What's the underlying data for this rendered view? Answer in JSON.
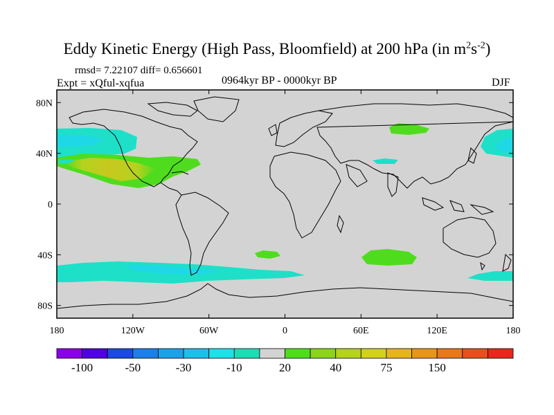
{
  "header": {
    "title_prefix": "Eddy Kinetic Energy (High Pass, Bloomfield) at 200 hPa (in m",
    "title_sup1": "2",
    "title_mid": "s",
    "title_sup2": "-2",
    "title_suffix": ")",
    "stats": "rmsd= 7.22107 diff= 0.656601",
    "experiment": "Expt = xQful-xqfua",
    "period": "0964kyr BP - 0000kyr BP",
    "season": "DJF"
  },
  "map": {
    "x_ticks": [
      {
        "lon": -180,
        "label": "180"
      },
      {
        "lon": -120,
        "label": "120W"
      },
      {
        "lon": -60,
        "label": "60W"
      },
      {
        "lon": 0,
        "label": "0"
      },
      {
        "lon": 60,
        "label": "60E"
      },
      {
        "lon": 120,
        "label": "120E"
      },
      {
        "lon": 180,
        "label": "180"
      }
    ],
    "y_ticks": [
      {
        "lat": 80,
        "label": "80N"
      },
      {
        "lat": 40,
        "label": "40N"
      },
      {
        "lat": 0,
        "label": "0"
      },
      {
        "lat": -40,
        "label": "40S"
      },
      {
        "lat": -80,
        "label": "80S"
      }
    ],
    "background_color": "#d3d3d3"
  },
  "colorbar": {
    "colors": [
      "#8a00e6",
      "#5000e0",
      "#1a4ae0",
      "#1e7ee6",
      "#1ea0e6",
      "#1ebee6",
      "#1ee0e6",
      "#1edcb4",
      "#d3d3d3",
      "#50dc1e",
      "#8cd21e",
      "#b4d21e",
      "#d2d21e",
      "#e6b41e",
      "#e6961e",
      "#e6781e",
      "#e6501e",
      "#e6281e"
    ],
    "labels": [
      {
        "index": 1,
        "text": "-100"
      },
      {
        "index": 3,
        "text": "-50"
      },
      {
        "index": 5,
        "text": "-30"
      },
      {
        "index": 7,
        "text": "-10"
      },
      {
        "index": 9,
        "text": "20"
      },
      {
        "index": 11,
        "text": "40"
      },
      {
        "index": 13,
        "text": "75"
      },
      {
        "index": 15,
        "text": "150"
      }
    ]
  }
}
